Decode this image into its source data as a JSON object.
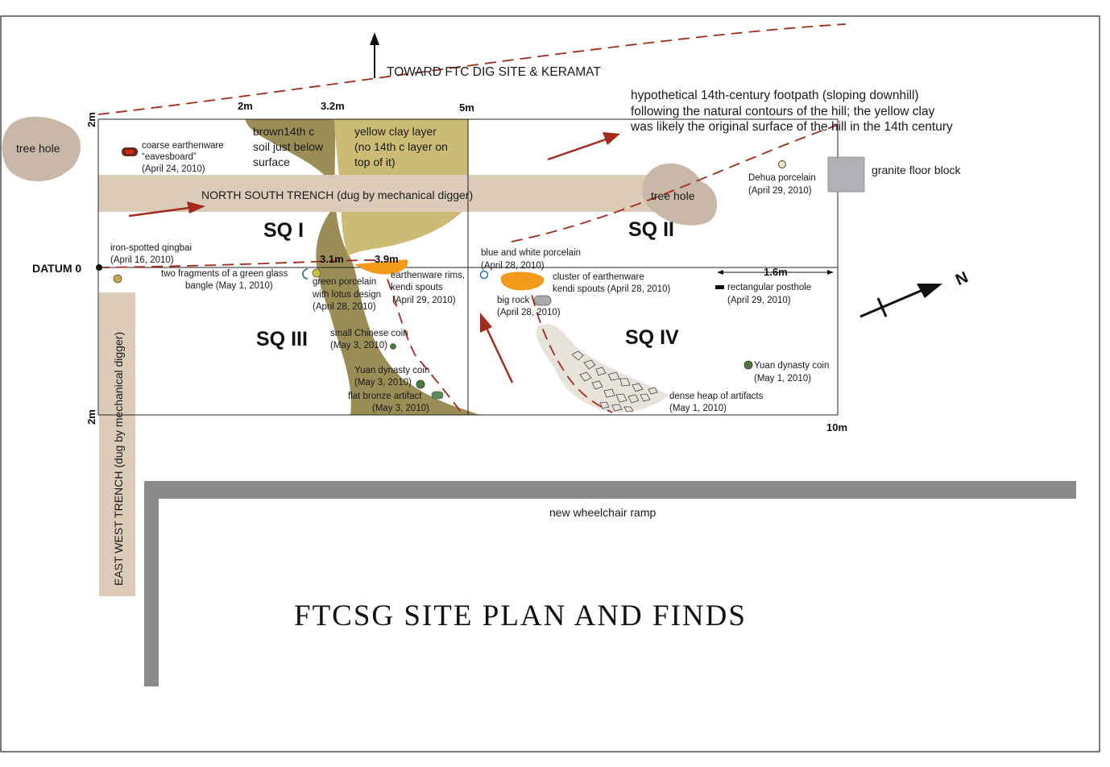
{
  "title": "FTCSG SITE PLAN AND FINDS",
  "colors": {
    "trench": "#dccbb8",
    "brown_soil": "#9a8d56",
    "yellow_clay": "#cbbb74",
    "orange_find": "#f29a1c",
    "path_red": "#a32a1c",
    "ramp_gray": "#8a8a8a",
    "granite": "#b0b0b5",
    "tree_hole": "#c9b7a8"
  },
  "north_arrow": {
    "label": "N"
  },
  "measurements": {
    "top_2m": "2m",
    "top_3_2m": "3.2m",
    "top_5m": "5m",
    "side_top_2m": "2m",
    "side_bottom_2m": "2m",
    "mid_3_1m": "3.1m",
    "mid_3_9m": "3.9m",
    "right_10m": "10m",
    "span_1_6m": "1.6m"
  },
  "datum": "DATUM 0",
  "squares": {
    "sq1": "SQ I",
    "sq2": "SQ II",
    "sq3": "SQ III",
    "sq4": "SQ IV"
  },
  "features": {
    "toward": "TOWARD FTC DIG SITE & KERAMAT",
    "footpath_lines": [
      "hypothetical 14th-century footpath (sloping downhill)",
      "following the natural contours of the hill; the yellow clay",
      "was likely the original surface of the hill in the 14th century"
    ],
    "brown_soil_lines": [
      "brown14th c",
      "soil just below",
      "surface"
    ],
    "yellow_clay_lines": [
      "yellow clay layer",
      "(no 14th c layer on",
      "top of it)"
    ],
    "ns_trench": "NORTH SOUTH TRENCH (dug by mechanical digger)",
    "ew_trench": "EAST WEST TRENCH (dug by mechanical digger)",
    "tree_hole_left": "tree hole",
    "tree_hole_right": "tree hole",
    "granite": "granite floor block",
    "ramp": "new wheelchair ramp"
  },
  "finds": {
    "eavesboard": [
      "coarse earthenware",
      "“eavesboard”",
      "(April 24, 2010)"
    ],
    "qingbai": [
      "iron-spotted qingbai",
      "(April 16, 2010)"
    ],
    "bangle": [
      "two fragments of a green glass",
      "bangle (May 1, 2010)"
    ],
    "green_porcelain": [
      "green porcelain",
      "with lotus design",
      "(April 28, 2010)"
    ],
    "earthenware_rims": [
      "earthenware rims,",
      "kendi spouts",
      "(April 29, 2010)"
    ],
    "small_coin": [
      "small Chinese coin",
      "(May 3, 2010)"
    ],
    "yuan_coin_left": [
      "Yuan dynasty coin",
      "(May 3, 2010)"
    ],
    "bronze": [
      "flat bronze artifact",
      "(May 3, 2010)"
    ],
    "blue_white": [
      "blue and white porcelain",
      "(April 28, 2010)"
    ],
    "kendi_cluster": [
      "cluster of earthenware",
      "kendi spouts (April 28, 2010)"
    ],
    "big_rock": [
      "big rock",
      "(April 28, 2010)"
    ],
    "posthole": [
      "rectangular posthole",
      "(April 29, 2010)"
    ],
    "dehua": [
      "Dehua porcelain",
      "(April 29, 2010)"
    ],
    "yuan_coin_right": [
      "Yuan dynasty coin",
      "(May 1, 2010)"
    ],
    "dense_heap": [
      "dense heap of artifacts",
      "(May 1, 2010)"
    ]
  }
}
